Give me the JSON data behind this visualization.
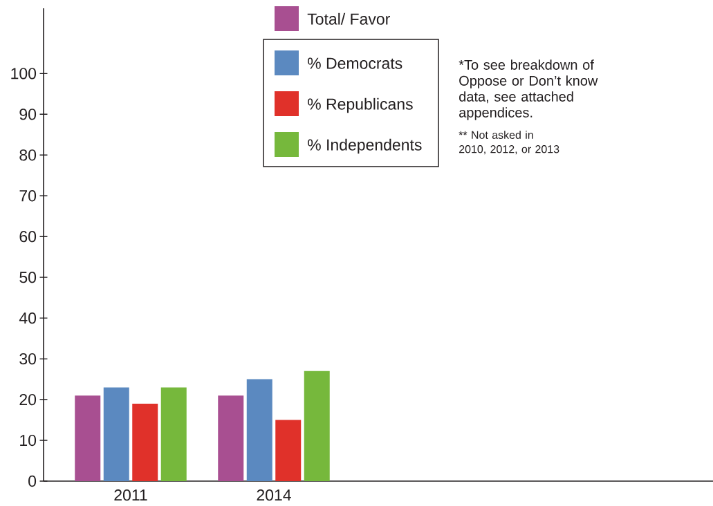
{
  "chart_data": {
    "type": "bar",
    "categories": [
      "2011",
      "2014"
    ],
    "series": [
      {
        "name": "Total/ Favor",
        "color": "#a84f91",
        "values": [
          21,
          21
        ]
      },
      {
        "name": "% Democrats",
        "color": "#5b89c0",
        "values": [
          23,
          25
        ]
      },
      {
        "name": "% Republicans",
        "color": "#e0312a",
        "values": [
          19,
          15
        ]
      },
      {
        "name": "% Independents",
        "color": "#76b83c",
        "values": [
          23,
          27
        ]
      }
    ],
    "ylim": [
      0,
      116
    ],
    "yticks": [
      0,
      10,
      20,
      30,
      40,
      50,
      60,
      70,
      80,
      90,
      100
    ],
    "legend": "top",
    "annotations": [
      "*To see breakdown of Oppose or Don’t know data, see attached appendices.",
      "** Not asked in 2010, 2012, or 2013"
    ]
  }
}
